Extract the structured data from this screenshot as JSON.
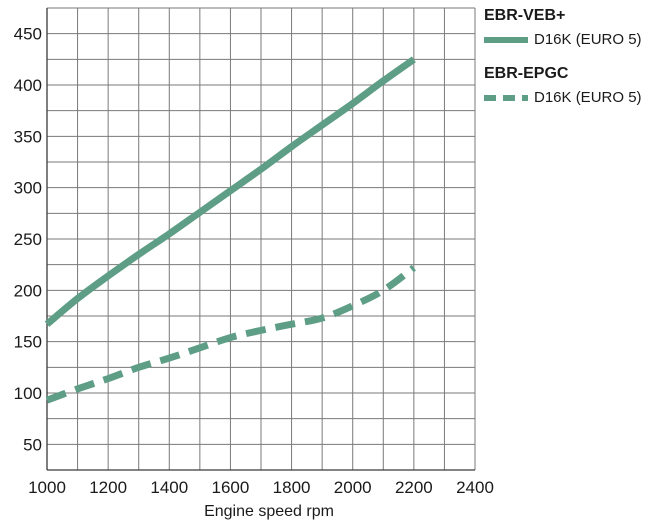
{
  "chart_data": {
    "type": "line",
    "xlabel": "Engine speed rpm",
    "ylabel": "",
    "xlim": [
      1000,
      2400
    ],
    "ylim": [
      25,
      475
    ],
    "x_ticks": [
      1000,
      1200,
      1400,
      1600,
      1800,
      2000,
      2200,
      2400
    ],
    "y_ticks": [
      50,
      100,
      150,
      200,
      250,
      300,
      350,
      400,
      450
    ],
    "grid": true,
    "legend_position": "top-right",
    "series": [
      {
        "group": "EBR-VEB+",
        "name": "D16K (EURO 5)",
        "style": "solid",
        "color": "#5f9e86",
        "x": [
          1000,
          1100,
          1200,
          1300,
          1400,
          1500,
          1600,
          1700,
          1800,
          1900,
          2000,
          2100,
          2200
        ],
        "y": [
          167,
          192,
          214,
          235,
          255,
          276,
          297,
          318,
          340,
          361,
          382,
          404,
          425
        ]
      },
      {
        "group": "EBR-EPGC",
        "name": "D16K (EURO 5)",
        "style": "dashed",
        "color": "#5f9e86",
        "x": [
          1000,
          1100,
          1200,
          1300,
          1400,
          1500,
          1600,
          1700,
          1800,
          1900,
          2000,
          2100,
          2200
        ],
        "y": [
          93,
          104,
          114,
          125,
          134,
          144,
          154,
          161,
          167,
          173,
          185,
          200,
          222
        ]
      }
    ]
  },
  "legend": {
    "groups": [
      {
        "title": "EBR-VEB+",
        "entry": "D16K (EURO 5)"
      },
      {
        "title": "EBR-EPGC",
        "entry": "D16K (EURO 5)"
      }
    ]
  }
}
